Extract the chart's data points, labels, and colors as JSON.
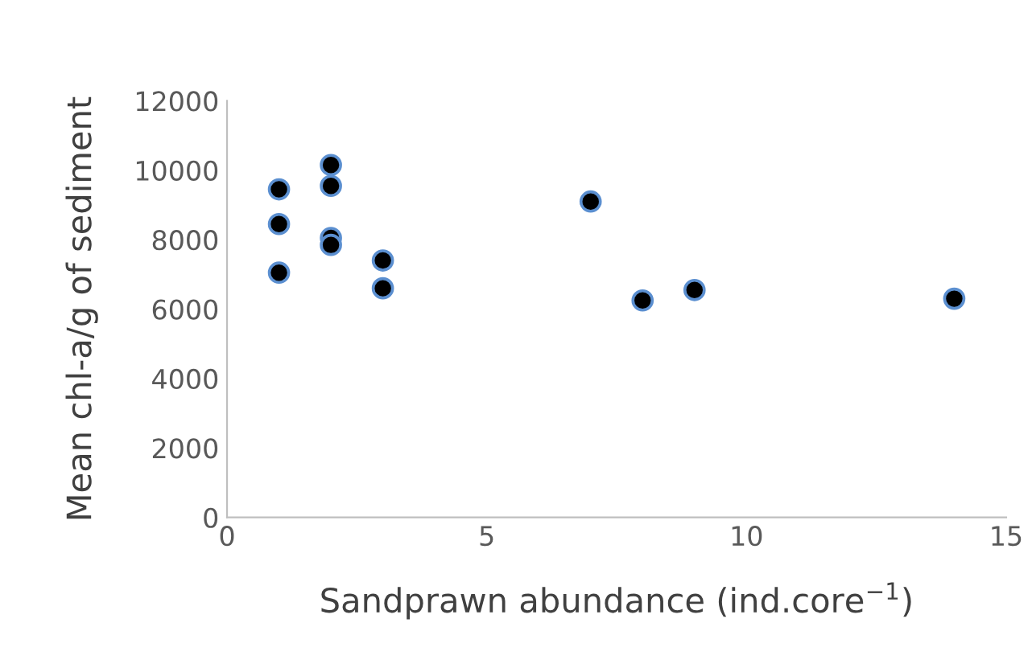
{
  "chart_data": {
    "type": "scatter",
    "xlabel": "Sandprawn abundance (ind.core$^{−1}$)",
    "ylabel": "Mean chl-a/g of sediment",
    "x": [
      1,
      1,
      1,
      2,
      2,
      2,
      2,
      3,
      3,
      7,
      8,
      9,
      14
    ],
    "series": [
      {
        "color": "#000000",
        "values": [
          9450,
          8450,
          7050,
          10150,
          9550,
          8050,
          7850,
          7400,
          6600,
          9100,
          6250,
          6550,
          6300
        ]
      }
    ],
    "xlim": [
      0,
      15
    ],
    "xticks": [
      0,
      5,
      10,
      15
    ],
    "ylim": [
      0,
      12000
    ],
    "yticks": [
      0,
      2000,
      4000,
      6000,
      8000,
      10000,
      12000
    ],
    "grid": false,
    "legend": false,
    "marker": "circle"
  }
}
